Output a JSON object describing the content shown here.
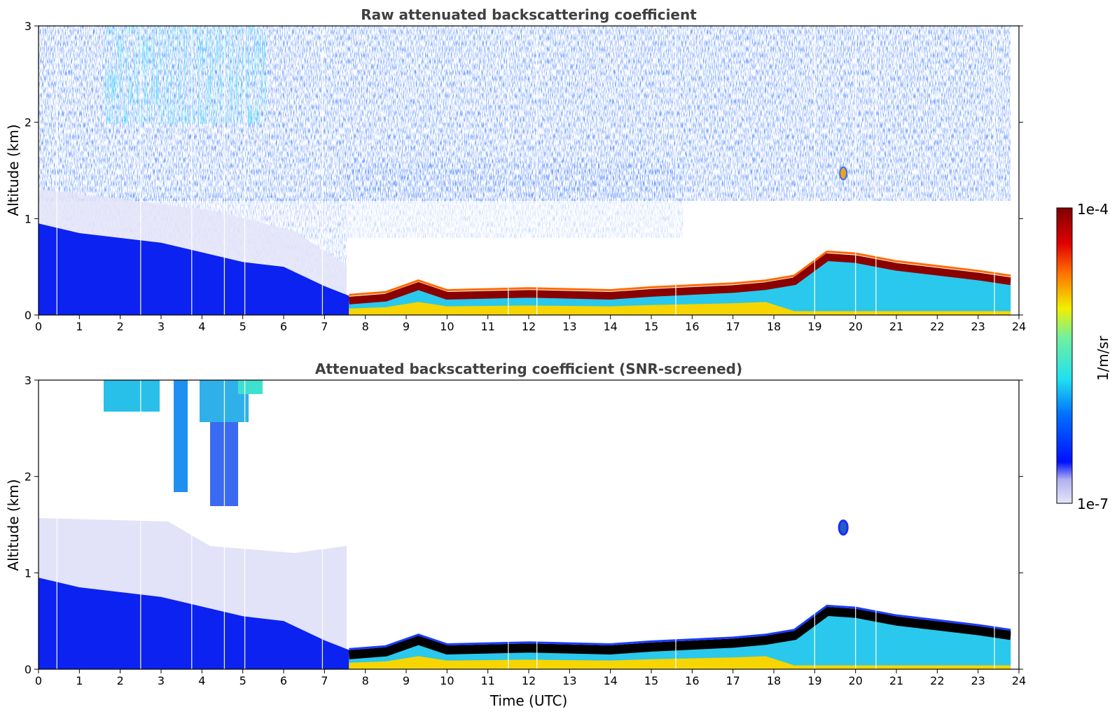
{
  "chart_data": [
    {
      "type": "heatmap",
      "title": "Raw attenuated backscattering coefficient",
      "xlabel": "",
      "ylabel": "Altitude (km)",
      "xlim": [
        0,
        24
      ],
      "ylim": [
        0,
        3
      ],
      "xticks": [
        0,
        1,
        2,
        3,
        4,
        5,
        6,
        7,
        8,
        9,
        10,
        11,
        12,
        13,
        14,
        15,
        16,
        17,
        18,
        19,
        20,
        21,
        22,
        23,
        24
      ],
      "yticks": [
        0,
        1,
        2,
        3
      ],
      "colorbar": {
        "label": "1/m/sr",
        "max_label": "1e-4",
        "min_label": "1e-7",
        "scale": "log"
      },
      "features": {
        "boundary_layer_top_km": {
          "x": [
            0,
            1,
            2,
            3,
            4,
            5,
            6,
            7,
            7.6
          ],
          "y": [
            0.95,
            0.85,
            0.8,
            0.75,
            0.65,
            0.55,
            0.5,
            0.3,
            0.2
          ]
        },
        "peak_layer_km": {
          "x": [
            7.6,
            8.5,
            9.3,
            10,
            12,
            14,
            15,
            16,
            17,
            17.8,
            18.5,
            19.3,
            20,
            21,
            22,
            23,
            23.8
          ],
          "y": [
            0.15,
            0.18,
            0.3,
            0.2,
            0.22,
            0.2,
            0.23,
            0.25,
            0.27,
            0.3,
            0.35,
            0.6,
            0.58,
            0.5,
            0.45,
            0.4,
            0.35
          ]
        },
        "isolated_feature": {
          "x": 19.7,
          "y": 1.47
        },
        "data_end_hour": 23.8
      }
    },
    {
      "type": "heatmap",
      "title": "Attenuated backscattering coefficient (SNR-screened)",
      "xlabel": "Time (UTC)",
      "ylabel": "Altitude (km)",
      "xlim": [
        0,
        24
      ],
      "ylim": [
        0,
        3
      ],
      "xticks": [
        0,
        1,
        2,
        3,
        4,
        5,
        6,
        7,
        8,
        9,
        10,
        11,
        12,
        13,
        14,
        15,
        16,
        17,
        18,
        19,
        20,
        21,
        22,
        23,
        24
      ],
      "yticks": [
        0,
        1,
        2,
        3
      ]
    }
  ],
  "colors": {
    "scale_low": "#e6e6fa",
    "scale_blue": "#0a2cff",
    "scale_cyan": "#30e0f0",
    "scale_yellow": "#f4f000",
    "scale_red": "#e02000",
    "scale_high": "#800000",
    "screened_peak": "#000000"
  }
}
